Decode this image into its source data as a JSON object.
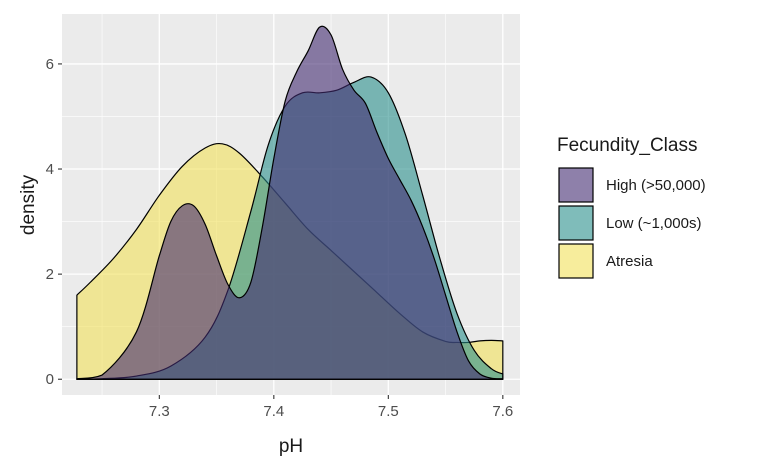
{
  "chart_data": {
    "type": "area",
    "xlabel": "pH",
    "ylabel": "density",
    "xlim": [
      7.215,
      7.615
    ],
    "ylim": [
      -0.3,
      6.95
    ],
    "x_ticks": [
      7.3,
      7.4,
      7.5,
      7.6
    ],
    "y_ticks": [
      0,
      2,
      4,
      6
    ],
    "grid": true,
    "legend": {
      "title": "Fecundity_Class",
      "position": "right"
    },
    "series": [
      {
        "name": "Atresia",
        "color": "#f2e15a",
        "x": [
          7.228,
          7.24,
          7.26,
          7.28,
          7.3,
          7.32,
          7.34,
          7.355,
          7.37,
          7.39,
          7.41,
          7.43,
          7.45,
          7.47,
          7.49,
          7.51,
          7.53,
          7.55,
          7.56,
          7.57,
          7.58,
          7.59,
          7.6
        ],
        "values": [
          1.6,
          1.85,
          2.3,
          2.85,
          3.5,
          4.05,
          4.4,
          4.48,
          4.3,
          3.85,
          3.35,
          2.85,
          2.45,
          2.05,
          1.65,
          1.25,
          0.9,
          0.72,
          0.7,
          0.7,
          0.73,
          0.74,
          0.73
        ]
      },
      {
        "name": "Low (~1,000s)",
        "color": "#29908c",
        "x": [
          7.228,
          7.25,
          7.28,
          7.31,
          7.34,
          7.36,
          7.38,
          7.395,
          7.41,
          7.425,
          7.44,
          7.455,
          7.47,
          7.485,
          7.5,
          7.515,
          7.53,
          7.545,
          7.56,
          7.575,
          7.59,
          7.6
        ],
        "values": [
          0,
          0.01,
          0.06,
          0.25,
          0.8,
          1.7,
          3.2,
          4.45,
          5.2,
          5.45,
          5.45,
          5.5,
          5.65,
          5.75,
          5.45,
          4.65,
          3.5,
          2.3,
          1.25,
          0.55,
          0.2,
          0.1
        ]
      },
      {
        "name": "High (>50,000)",
        "color": "#432c71",
        "x": [
          7.228,
          7.25,
          7.28,
          7.3,
          7.31,
          7.32,
          7.33,
          7.34,
          7.35,
          7.36,
          7.37,
          7.38,
          7.39,
          7.4,
          7.41,
          7.42,
          7.43,
          7.44,
          7.45,
          7.46,
          7.47,
          7.48,
          7.49,
          7.5,
          7.51,
          7.52,
          7.53,
          7.54,
          7.55,
          7.56,
          7.57,
          7.58,
          7.59,
          7.6
        ],
        "values": [
          0.01,
          0.08,
          0.9,
          2.35,
          3.0,
          3.3,
          3.3,
          2.95,
          2.35,
          1.8,
          1.55,
          1.85,
          2.9,
          4.2,
          5.3,
          5.85,
          6.25,
          6.7,
          6.55,
          5.9,
          5.5,
          5.25,
          4.7,
          4.2,
          3.8,
          3.4,
          2.9,
          2.3,
          1.6,
          0.9,
          0.35,
          0.1,
          0.02,
          0.01
        ]
      }
    ],
    "draw_order": [
      "Atresia",
      "Low (~1,000s)",
      "High (>50,000)"
    ],
    "legend_order": [
      "High (>50,000)",
      "Low (~1,000s)",
      "Atresia"
    ]
  }
}
